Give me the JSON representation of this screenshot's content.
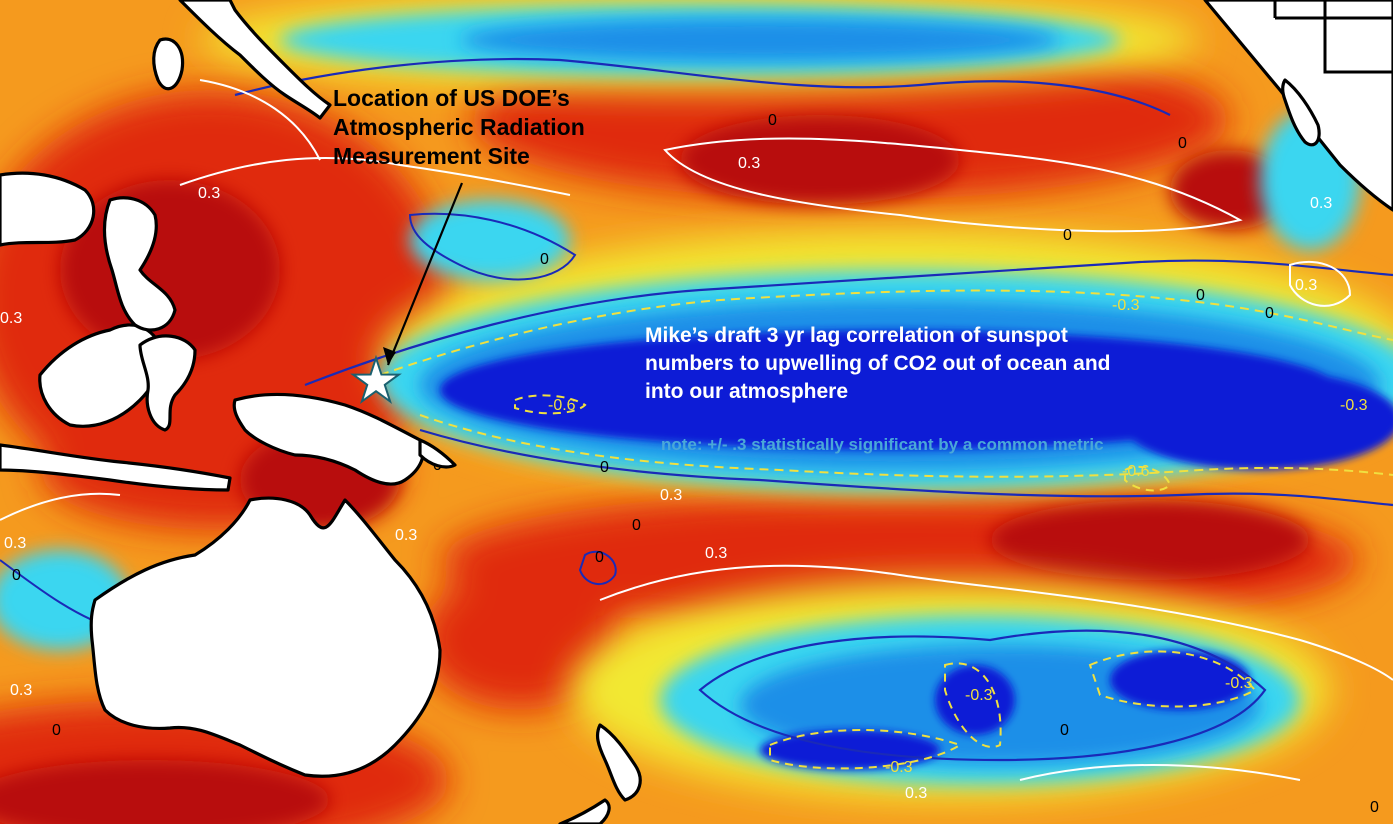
{
  "annotations": {
    "site_lines": [
      "Location of US DOE’s",
      "Atmospheric Radiation",
      "Measurement Site"
    ],
    "correlation_lines": [
      "Mike’s draft 3 yr lag correlation of sunspot",
      "numbers to upwelling of CO2 out of ocean and",
      "into our atmosphere"
    ],
    "note": "note: +/- .3 statistically significant by a common metric"
  },
  "contour_labels": {
    "pos_03": "0.3",
    "neg_03": "-0.3",
    "neg_06": "-0.6",
    "zero": "0"
  },
  "colors": {
    "strong_negative": "#0a1fd6",
    "negative": "#1c8fe8",
    "weak_negative": "#3ad6f0",
    "neutral": "#8ee04a",
    "weak_positive": "#f2e830",
    "positive": "#f59a1e",
    "strong_positive": "#e02a10",
    "very_strong_positive": "#b80e0a",
    "land": "#ffffff",
    "coastline": "#000000",
    "contour_pos": "#ffffff",
    "contour_zero": "#1a2ab8",
    "contour_neg": "#f0e040"
  },
  "marker": {
    "type": "star",
    "fill": "#ffffff",
    "stroke": "#1a6070"
  }
}
